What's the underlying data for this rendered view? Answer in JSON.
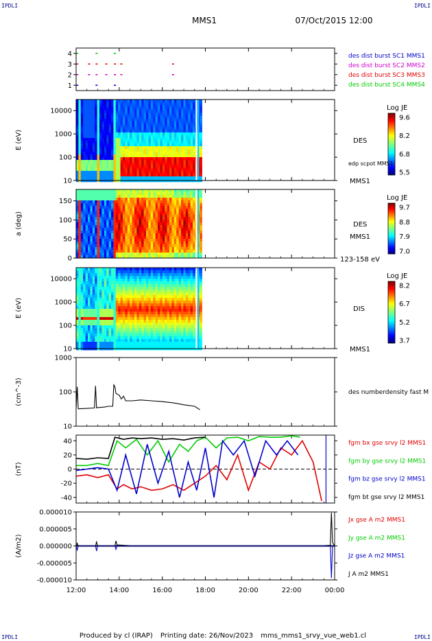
{
  "header": {
    "corner_left": "IPDLI",
    "corner_right": "IPDLI",
    "corner_bottom_left": "IPDLI",
    "corner_bottom_right": "IPDLI",
    "title": "MMS1",
    "datetime": "07/Oct/2015 12:00"
  },
  "footer": {
    "produced_by": "Produced by cl (IRAP)",
    "printing_date": "Printing date: 26/Nov/2023",
    "file": "mms_mms1_srvy_vue_web1.cl"
  },
  "colors": {
    "blue": "#0000cc",
    "magenta": "#cc00cc",
    "red": "#e00000",
    "green": "#00cc00",
    "black": "#000000"
  },
  "chart_data": [
    {
      "type": "scatter",
      "id": "availability",
      "yticks": [
        "4",
        "3",
        "2",
        "1"
      ],
      "ylim": [
        0.5,
        4.5
      ],
      "legend": [
        {
          "text": "des dist burst SC1 MMS1",
          "color": "#0000cc"
        },
        {
          "text": "des dist burst SC2 MMS2",
          "color": "#cc00cc"
        },
        {
          "text": "des dist burst SC3 MMS3",
          "color": "#e00000"
        },
        {
          "text": "des dist burst SC4 MMS4",
          "color": "#00cc00"
        }
      ],
      "series": [
        {
          "level": 4,
          "color": "#00cc00",
          "x": [
            12.05,
            12.95,
            13.8
          ]
        },
        {
          "level": 3,
          "color": "#e00000",
          "x": [
            12.05,
            12.6,
            12.95,
            13.4,
            13.8,
            14.1,
            16.5
          ]
        },
        {
          "level": 2,
          "color": "#cc00cc",
          "x": [
            12.05,
            12.6,
            12.95,
            13.4,
            13.8,
            14.1,
            16.5
          ]
        },
        {
          "level": 1,
          "color": "#0000cc",
          "x": [
            12.05,
            12.95,
            13.8
          ]
        }
      ]
    },
    {
      "type": "heatmap",
      "id": "des-energy",
      "ylabel": "E (eV)",
      "yscale": "log",
      "ylim": [
        10,
        30000
      ],
      "yticks": [
        "10000",
        "1000",
        "100",
        "10"
      ],
      "label_species": "DES",
      "label_extra": "edp scpot MMS1",
      "label_sc": "MMS1",
      "colorbar": {
        "title": "Log JE",
        "ticks": [
          "9.6",
          "8.2",
          "6.8",
          "5.5"
        ]
      },
      "data_end_hour": 17.75
    },
    {
      "type": "heatmap",
      "id": "des-pitch",
      "ylabel": "a (deg)",
      "ylim": [
        0,
        180
      ],
      "yticks": [
        "150",
        "100",
        "50",
        "0"
      ],
      "label_species": "DES",
      "label_sc": "MMS1",
      "label_range": "123-158 eV",
      "colorbar": {
        "title": "Log JE",
        "ticks": [
          "9.7",
          "8.8",
          "7.9",
          "7.0"
        ]
      },
      "data_end_hour": 17.75
    },
    {
      "type": "heatmap",
      "id": "dis-energy",
      "ylabel": "E (eV)",
      "yscale": "log",
      "ylim": [
        10,
        30000
      ],
      "yticks": [
        "10000",
        "1000",
        "100",
        "10"
      ],
      "label_species": "DIS",
      "label_sc": "MMS1",
      "colorbar": {
        "title": "Log JE",
        "ticks": [
          "8.2",
          "6.7",
          "5.2",
          "3.7"
        ]
      },
      "data_end_hour": 17.75
    },
    {
      "type": "line",
      "id": "density",
      "ylabel": "(cm^-3)",
      "yscale": "log",
      "ylim": [
        10,
        1000
      ],
      "yticks": [
        "1000",
        "100",
        "10"
      ],
      "legend": [
        {
          "text": "des numberdensity fast M",
          "color": "#000000"
        }
      ],
      "series": [
        {
          "name": "des numberdensity fast M",
          "color": "#000000",
          "x": [
            12.0,
            12.05,
            12.1,
            12.5,
            12.85,
            12.9,
            12.95,
            13.0,
            13.05,
            13.3,
            13.5,
            13.7,
            13.75,
            13.8,
            13.85,
            14.0,
            14.1,
            14.2,
            14.3,
            14.6,
            15.0,
            15.5,
            16.0,
            16.5,
            17.0,
            17.5,
            17.75
          ],
          "y": [
            32,
            140,
            32,
            33,
            34,
            150,
            34,
            35,
            35,
            36,
            38,
            38,
            160,
            140,
            90,
            80,
            62,
            75,
            55,
            55,
            58,
            55,
            52,
            48,
            42,
            38,
            30
          ]
        }
      ]
    },
    {
      "type": "line",
      "id": "magnetic-field",
      "ylabel": "(nT)",
      "ylim": [
        -48,
        48
      ],
      "yticks": [
        "40",
        "20",
        "0",
        "-20",
        "-40"
      ],
      "legend": [
        {
          "text": "fgm bx gse srvy l2 MMS1",
          "color": "#e00000"
        },
        {
          "text": "fgm by gse srvy l2 MMS1",
          "color": "#00cc00"
        },
        {
          "text": "fgm bz gse srvy l2 MMS1",
          "color": "#0000cc"
        },
        {
          "text": "fgm bt gse srvy l2 MMS1",
          "color": "#000000"
        }
      ],
      "series": [
        {
          "name": "fgm bx gse srvy l2 MMS1",
          "color": "#e00000",
          "x": [
            12.0,
            12.5,
            13.0,
            13.5,
            13.9,
            14.2,
            14.6,
            15.0,
            15.5,
            16.0,
            16.5,
            17.0,
            17.5,
            18.0,
            18.5,
            19.0,
            19.5,
            20.0,
            20.5,
            21.0,
            21.5,
            22.0,
            22.5,
            23.0,
            23.4
          ],
          "y": [
            -10,
            -8,
            -12,
            -8,
            -28,
            -22,
            -28,
            -25,
            -30,
            -28,
            -22,
            -30,
            -20,
            -10,
            5,
            -15,
            20,
            -30,
            10,
            0,
            30,
            20,
            40,
            10,
            -45
          ]
        },
        {
          "name": "fgm by gse srvy l2 MMS1",
          "color": "#00cc00",
          "x": [
            12.0,
            12.5,
            13.0,
            13.5,
            13.9,
            14.3,
            14.8,
            15.3,
            15.8,
            16.3,
            16.8,
            17.2,
            17.6,
            18.0,
            18.5,
            19.0,
            19.5,
            20.0,
            20.5,
            21.0,
            21.5,
            22.0,
            22.4
          ],
          "y": [
            5,
            5,
            8,
            5,
            40,
            30,
            42,
            20,
            40,
            10,
            35,
            25,
            40,
            45,
            30,
            44,
            45,
            40,
            46,
            45,
            45,
            47,
            45
          ]
        },
        {
          "name": "fgm bz gse srvy l2 MMS1",
          "color": "#0000cc",
          "x": [
            12.0,
            12.5,
            13.0,
            13.5,
            13.9,
            14.3,
            14.8,
            15.3,
            15.8,
            16.3,
            16.8,
            17.2,
            17.6,
            18.0,
            18.4,
            18.8,
            19.3,
            19.8,
            20.3,
            20.8,
            21.3,
            21.8,
            22.3
          ],
          "y": [
            -2,
            0,
            2,
            0,
            -30,
            20,
            -35,
            35,
            -20,
            25,
            -40,
            10,
            -30,
            30,
            -40,
            40,
            20,
            40,
            -10,
            40,
            20,
            40,
            20
          ]
        },
        {
          "name": "fgm bt gse srvy l2 MMS1",
          "color": "#000000",
          "x": [
            12.0,
            12.5,
            13.0,
            13.5,
            13.8,
            14.2,
            14.6,
            15.0,
            15.5,
            16.0,
            16.5,
            17.0,
            17.5,
            18.0
          ],
          "y": [
            15,
            14,
            16,
            15,
            45,
            42,
            44,
            43,
            44,
            42,
            43,
            41,
            44,
            45
          ]
        }
      ],
      "zero_line": true
    },
    {
      "type": "line",
      "id": "current-density",
      "ylabel": "(A/m2)",
      "ylim": [
        -1e-05,
        1e-05
      ],
      "yticks": [
        "0.000010",
        "0.000005",
        "0.000000",
        "-0.000005",
        "-0.000010"
      ],
      "legend": [
        {
          "text": "Jx gse A m2 MMS1",
          "color": "#e00000"
        },
        {
          "text": "Jy gse A m2 MMS1",
          "color": "#00cc00"
        },
        {
          "text": "Jz gse A m2 MMS1",
          "color": "#0000cc"
        },
        {
          "text": "J A m2 MMS1",
          "color": "#000000"
        }
      ],
      "series": [
        {
          "name": "J A m2 MMS1",
          "color": "#000000",
          "x": [
            12.0,
            12.05,
            12.1,
            12.9,
            12.95,
            13.0,
            13.8,
            13.85,
            13.9,
            14.5,
            16.0,
            18.0,
            20.0,
            23.5,
            23.8,
            23.85,
            23.9,
            24.0
          ],
          "y": [
            0,
            8e-07,
            0,
            0,
            1.2e-06,
            0,
            0,
            1.5e-06,
            3e-07,
            1e-07,
            1e-07,
            1e-07,
            1e-07,
            1e-07,
            2e-07,
            9.8e-06,
            1e-06,
            0
          ]
        },
        {
          "name": "Jz gse A m2 MMS1",
          "color": "#0000cc",
          "x": [
            12.0,
            12.05,
            12.1,
            12.9,
            12.95,
            13.0,
            13.8,
            13.85,
            13.9,
            14.5,
            23.8,
            23.85,
            23.9,
            24.0
          ],
          "y": [
            0,
            -1.2e-06,
            0,
            0,
            -1.5e-06,
            0,
            0,
            -1e-06,
            0,
            0,
            0,
            -9.5e-06,
            0,
            0
          ]
        }
      ]
    }
  ],
  "x_axis": {
    "xlim": [
      12,
      24
    ],
    "ticks": [
      {
        "hour": 12,
        "label": "12:00"
      },
      {
        "hour": 14,
        "label": "14:00"
      },
      {
        "hour": 16,
        "label": "16:00"
      },
      {
        "hour": 18,
        "label": "18:00"
      },
      {
        "hour": 20,
        "label": "20:00"
      },
      {
        "hour": 22,
        "label": "22:00"
      },
      {
        "hour": 24,
        "label": "00:00"
      }
    ]
  }
}
